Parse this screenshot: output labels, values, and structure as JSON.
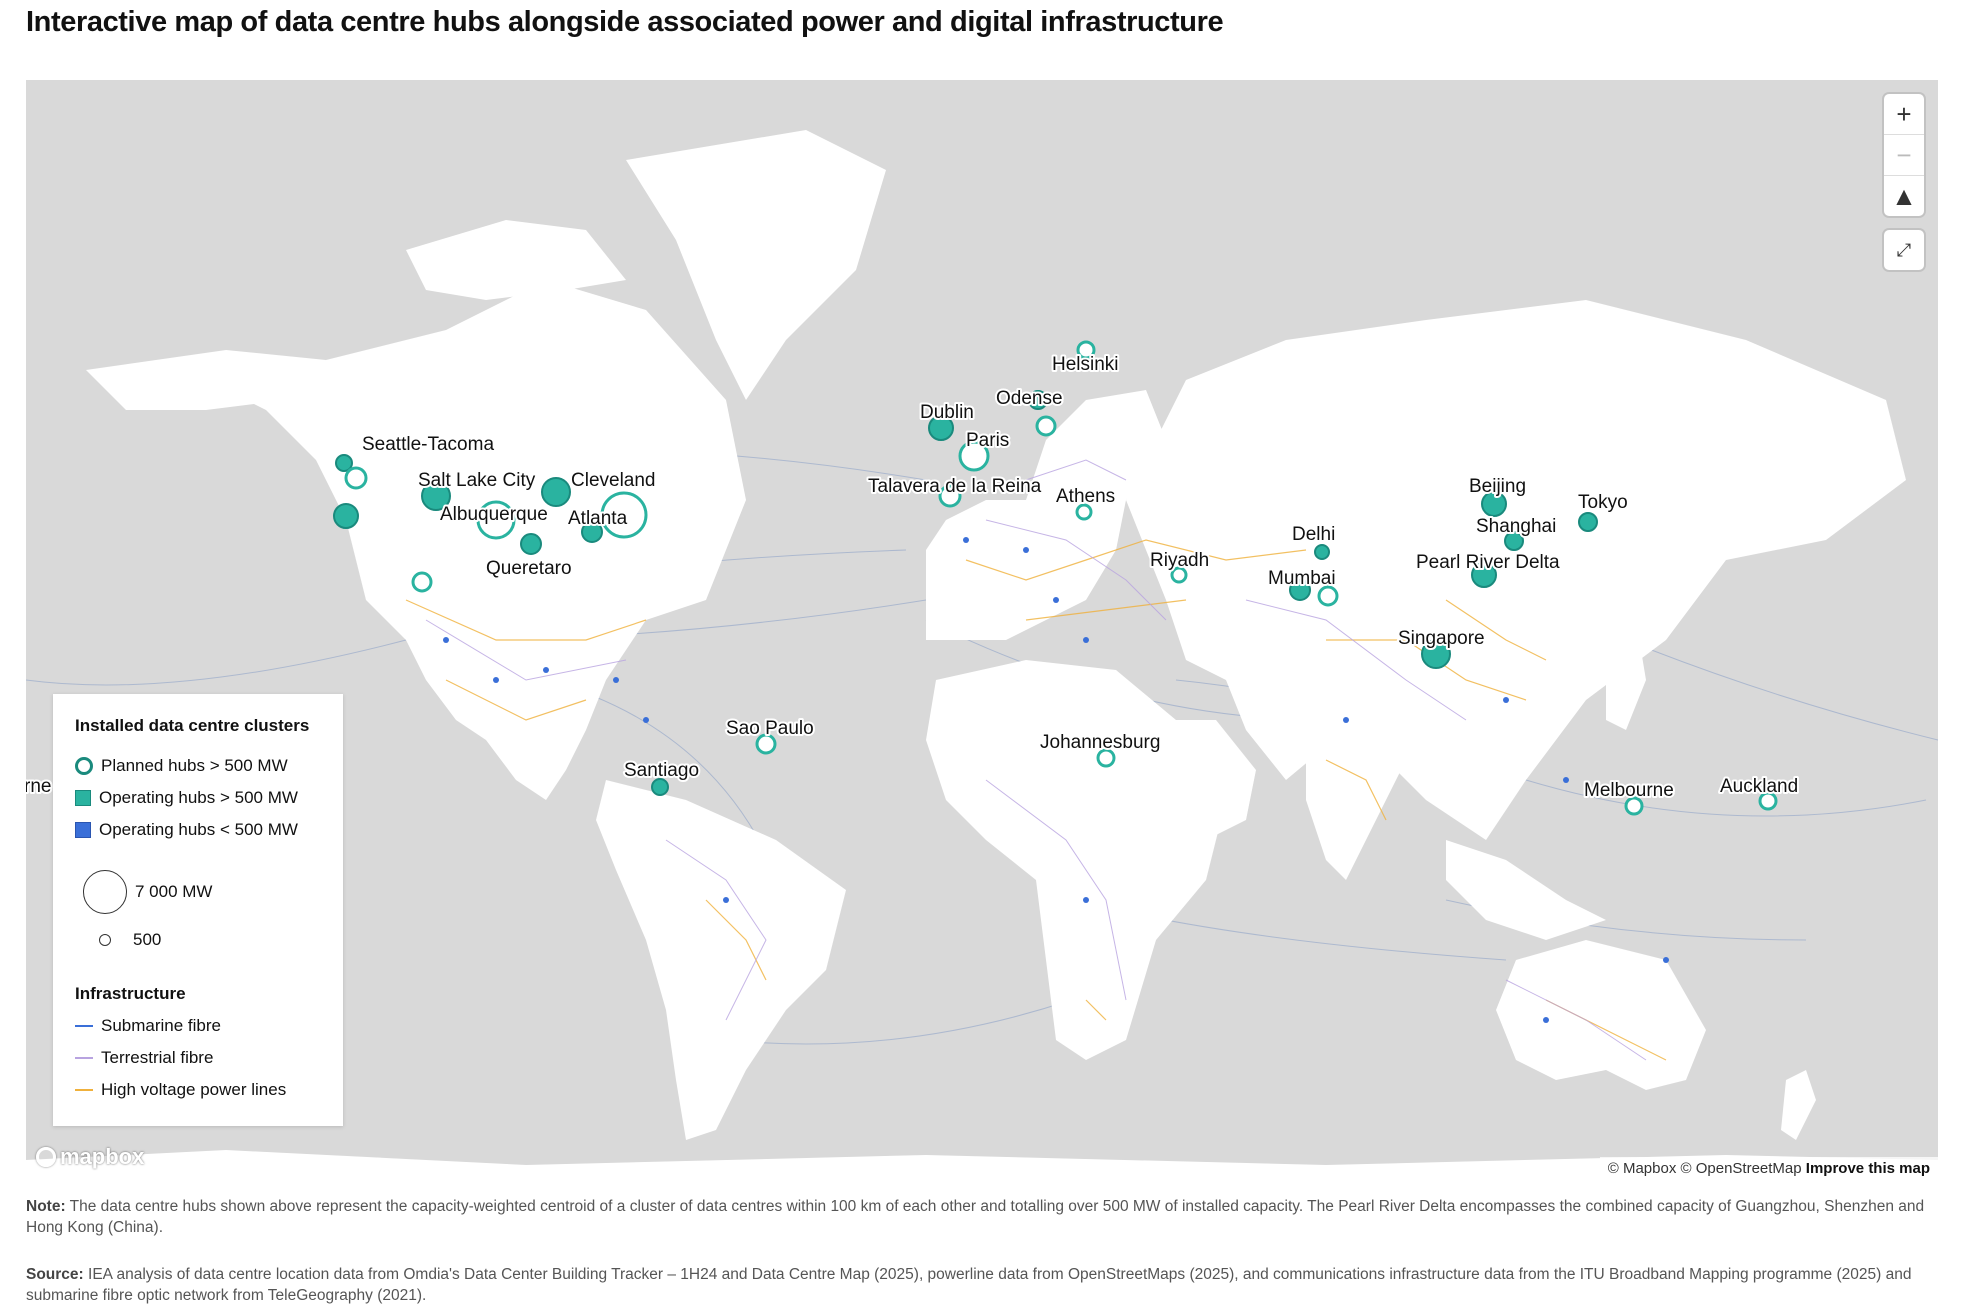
{
  "title": "Interactive map of data centre hubs alongside associated power and digital infrastructure",
  "controls": {
    "zoom_in": "+",
    "zoom_out": "−",
    "compass": "▲",
    "fullscreen": "⤢"
  },
  "legend": {
    "clusters_heading": "Installed data centre clusters",
    "planned": "Planned hubs > 500 MW",
    "operating_large": "Operating hubs > 500 MW",
    "operating_small": "Operating hubs < 500 MW",
    "size_large": "7 000 MW",
    "size_small": "500",
    "infrastructure_heading": "Infrastructure",
    "submarine": "Submarine fibre",
    "terrestrial": "Terrestrial fibre",
    "power": "High voltage power lines"
  },
  "colors": {
    "ocean": "#d9d9d9",
    "land": "#ffffff",
    "hub_teal": "#2ab3a0",
    "hub_stroke": "#1a8a7d",
    "small_hub": "#3a6fd8",
    "submarine": "#3a6fd8",
    "terrestrial": "#b8a3e0",
    "power": "#f0b13c"
  },
  "cities": [
    {
      "name": "Seattle-Tacoma"
    },
    {
      "name": "Salt Lake City"
    },
    {
      "name": "Cleveland"
    },
    {
      "name": "Albuquerque"
    },
    {
      "name": "Atlanta"
    },
    {
      "name": "Queretaro"
    },
    {
      "name": "Dublin"
    },
    {
      "name": "Odense"
    },
    {
      "name": "Helsinki"
    },
    {
      "name": "Paris"
    },
    {
      "name": "Talavera de la Reina"
    },
    {
      "name": "Athens"
    },
    {
      "name": "Riyadh"
    },
    {
      "name": "Delhi"
    },
    {
      "name": "Mumbai"
    },
    {
      "name": "Beijing"
    },
    {
      "name": "Shanghai"
    },
    {
      "name": "Tokyo"
    },
    {
      "name": "Pearl River Delta"
    },
    {
      "name": "Singapore"
    },
    {
      "name": "Sao Paulo"
    },
    {
      "name": "Santiago"
    },
    {
      "name": "Johannesburg"
    },
    {
      "name": "Melbourne"
    },
    {
      "name": "Auckland"
    },
    {
      "name": "rne"
    }
  ],
  "map_brand": "mapbox",
  "attribution": {
    "mapbox": "© Mapbox",
    "osm": "© OpenStreetMap",
    "improve": "Improve this map"
  },
  "note": {
    "label": "Note:",
    "text": " The data centre hubs shown above represent the capacity-weighted centroid of a cluster of data centres within 100 km of each other and totalling over 500 MW of installed capacity. The Pearl River Delta encompasses the combined capacity of Guangzhou, Shenzhen and Hong Kong (China)."
  },
  "source": {
    "label": "Source:",
    "text": " IEA analysis of data centre location data from Omdia's Data Center Building Tracker – 1H24 and Data Centre Map (2025), powerline data from OpenStreetMaps (2025), and communications infrastructure data from the ITU Broadband Mapping programme (2025) and submarine fibre optic network from TeleGeography (2021)."
  }
}
